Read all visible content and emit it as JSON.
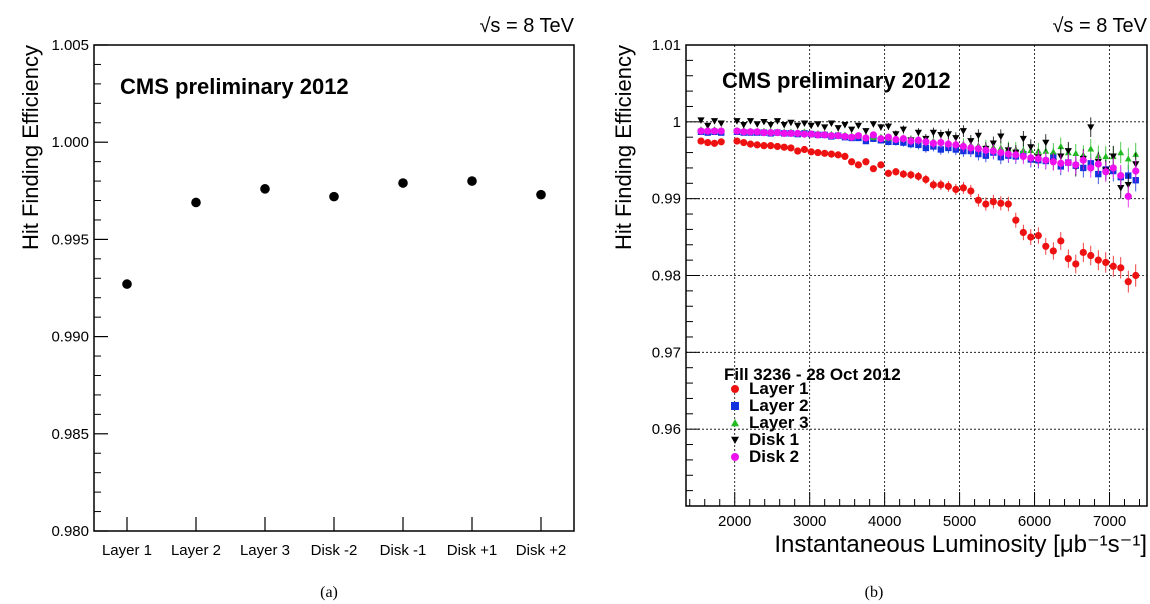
{
  "figure": {
    "panel_a_caption": "(a)",
    "panel_b_caption": "(b)"
  },
  "chart_data": [
    {
      "type": "scatter",
      "energy_label": "√s = 8 TeV",
      "title": "CMS preliminary 2012",
      "xlabel": "",
      "ylabel": "Hit Finding Efficiency",
      "ylim": [
        0.98,
        1.005
      ],
      "yticks": [
        "0.980",
        "0.985",
        "0.990",
        "0.995",
        "1.000",
        "1.005"
      ],
      "yticks_values": [
        0.98,
        0.985,
        0.99,
        0.995,
        1.0,
        1.005
      ],
      "categories": [
        "Layer 1",
        "Layer 2",
        "Layer 3",
        "Disk -2",
        "Disk -1",
        "Disk +1",
        "Disk +2"
      ],
      "values": [
        0.9927,
        0.9969,
        0.9976,
        0.9972,
        0.9979,
        0.998,
        0.9973
      ],
      "grid": false,
      "marker_color": "#000000"
    },
    {
      "type": "scatter",
      "energy_label": "√s = 8 TeV",
      "title": "CMS preliminary 2012",
      "xlabel": "Instantaneous Luminosity [μb⁻¹s⁻¹]",
      "ylabel": "Hit Finding Efficiency",
      "xlim": [
        1350,
        7500
      ],
      "ylim": [
        0.95,
        1.01
      ],
      "xticks": [
        "2000",
        "3000",
        "4000",
        "5000",
        "6000",
        "7000"
      ],
      "xticks_values": [
        2000,
        3000,
        4000,
        5000,
        6000,
        7000
      ],
      "yticks": [
        "0.96",
        "0.97",
        "0.98",
        "0.99",
        "1",
        "1.01"
      ],
      "yticks_values": [
        0.96,
        0.97,
        0.98,
        0.99,
        1.0,
        1.01
      ],
      "grid": true,
      "legend_title": "Fill 3236 -  28 Oct 2012",
      "legend_position": "bottom-left",
      "x": [
        1550,
        1640,
        1730,
        1820,
        2030,
        2120,
        2210,
        2300,
        2390,
        2480,
        2570,
        2660,
        2750,
        2840,
        2930,
        3020,
        3110,
        3200,
        3290,
        3380,
        3470,
        3560,
        3650,
        3750,
        3850,
        3950,
        4050,
        4150,
        4250,
        4350,
        4450,
        4550,
        4650,
        4750,
        4850,
        4950,
        5050,
        5150,
        5250,
        5350,
        5450,
        5550,
        5650,
        5750,
        5850,
        5950,
        6050,
        6150,
        6250,
        6350,
        6450,
        6550,
        6650,
        6750,
        6850,
        6950,
        7050,
        7150,
        7250,
        7350
      ],
      "series": [
        {
          "name": "Layer 1",
          "color": "#ee1111",
          "marker": "circle",
          "values": [
            0.9975,
            0.9973,
            0.9972,
            0.9974,
            0.9975,
            0.9973,
            0.9971,
            0.997,
            0.9969,
            0.9969,
            0.9968,
            0.9967,
            0.9966,
            0.9962,
            0.9964,
            0.9961,
            0.996,
            0.9959,
            0.9958,
            0.9957,
            0.9955,
            0.9948,
            0.9944,
            0.9948,
            0.9939,
            0.9944,
            0.9933,
            0.9935,
            0.9932,
            0.9931,
            0.9929,
            0.9925,
            0.9918,
            0.9918,
            0.9916,
            0.9912,
            0.9914,
            0.991,
            0.9898,
            0.9893,
            0.9896,
            0.9894,
            0.9893,
            0.9872,
            0.9856,
            0.985,
            0.9852,
            0.9838,
            0.9832,
            0.9845,
            0.9822,
            0.9815,
            0.983,
            0.9826,
            0.982,
            0.9817,
            0.9812,
            0.981,
            0.9792,
            0.98
          ]
        },
        {
          "name": "Layer 2",
          "color": "#1133dd",
          "marker": "square",
          "values": [
            0.9987,
            0.9986,
            0.9987,
            0.9986,
            0.9987,
            0.9986,
            0.9986,
            0.9986,
            0.9986,
            0.9985,
            0.9986,
            0.9985,
            0.9985,
            0.9984,
            0.9985,
            0.9984,
            0.9983,
            0.9983,
            0.9981,
            0.9982,
            0.998,
            0.9979,
            0.9979,
            0.9975,
            0.9978,
            0.9976,
            0.9974,
            0.9974,
            0.9973,
            0.9971,
            0.997,
            0.9966,
            0.9968,
            0.9964,
            0.9966,
            0.9964,
            0.9962,
            0.9962,
            0.9958,
            0.9956,
            0.996,
            0.9954,
            0.9956,
            0.9955,
            0.9958,
            0.9951,
            0.995,
            0.9949,
            0.9955,
            0.9942,
            0.9947,
            0.9943,
            0.994,
            0.9946,
            0.9932,
            0.9938,
            0.9936,
            0.9928,
            0.993,
            0.9924
          ]
        },
        {
          "name": "Layer 3",
          "color": "#22bb22",
          "marker": "triangle-up",
          "values": [
            0.999,
            0.9989,
            0.999,
            0.9989,
            0.9989,
            0.9989,
            0.9988,
            0.9988,
            0.9988,
            0.9988,
            0.9987,
            0.9987,
            0.9987,
            0.9986,
            0.9987,
            0.9985,
            0.9985,
            0.9985,
            0.9984,
            0.9984,
            0.9983,
            0.9982,
            0.9982,
            0.9981,
            0.998,
            0.998,
            0.9979,
            0.9978,
            0.9978,
            0.9977,
            0.9976,
            0.9975,
            0.9975,
            0.9974,
            0.9973,
            0.9972,
            0.9971,
            0.997,
            0.9969,
            0.9968,
            0.9967,
            0.9966,
            0.9965,
            0.9964,
            0.9963,
            0.9963,
            0.9962,
            0.9962,
            0.9961,
            0.9968,
            0.996,
            0.9959,
            0.9957,
            0.9965,
            0.9956,
            0.9955,
            0.9955,
            0.996,
            0.9952,
            0.9958
          ]
        },
        {
          "name": "Disk 1",
          "color": "#000000",
          "marker": "triangle-down",
          "values": [
            1.0002,
            0.9995,
            1.0001,
            0.9998,
            1.0001,
            0.9996,
            1.0001,
            0.9997,
            1.0,
            0.9996,
            1.0001,
            0.9996,
            0.9999,
            0.9995,
            0.9998,
            0.9995,
            0.9997,
            0.9993,
            0.9998,
            0.9992,
            0.9996,
            0.999,
            0.9995,
            0.9988,
            0.9997,
            0.9993,
            0.9994,
            0.9984,
            0.999,
            0.9976,
            0.9986,
            0.9978,
            0.9986,
            0.9983,
            0.9984,
            0.9979,
            0.9988,
            0.9975,
            0.9982,
            0.9965,
            0.9972,
            0.9981,
            0.9963,
            0.996,
            0.9978,
            0.9967,
            0.9954,
            0.9973,
            0.9948,
            0.9955,
            0.9962,
            0.9941,
            0.9952,
            0.9993,
            0.9948,
            0.9937,
            0.9955,
            0.9914,
            0.9918,
            0.9945
          ]
        },
        {
          "name": "Disk 2",
          "color": "#ee11ee",
          "marker": "circle",
          "values": [
            0.9988,
            0.9988,
            0.9988,
            0.9988,
            0.9988,
            0.9987,
            0.9987,
            0.9987,
            0.9986,
            0.9986,
            0.9986,
            0.9985,
            0.9985,
            0.9985,
            0.9984,
            0.9984,
            0.9983,
            0.9983,
            0.9982,
            0.9982,
            0.9981,
            0.998,
            0.9982,
            0.9979,
            0.9983,
            0.9978,
            0.998,
            0.9977,
            0.9978,
            0.9975,
            0.9976,
            0.9974,
            0.9972,
            0.9973,
            0.9971,
            0.997,
            0.9968,
            0.9966,
            0.9965,
            0.9963,
            0.9962,
            0.996,
            0.9958,
            0.9957,
            0.9955,
            0.9953,
            0.9952,
            0.995,
            0.9948,
            0.9946,
            0.9947,
            0.9944,
            0.995,
            0.994,
            0.9945,
            0.9935,
            0.994,
            0.993,
            0.9903,
            0.9936
          ]
        }
      ]
    }
  ]
}
